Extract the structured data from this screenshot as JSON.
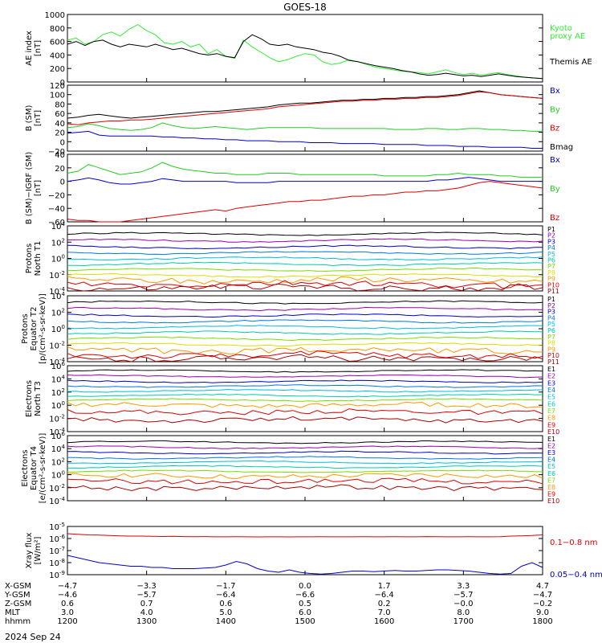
{
  "title": "GOES-18",
  "date_label": "2024 Sep 24",
  "colors": {
    "black": "#000000",
    "green": "#22cc22",
    "blue": "#0000cc",
    "red": "#dd0000",
    "ae_green": "#33ee33"
  },
  "chart_data": [
    {
      "type": "line",
      "id": "ae",
      "ylabel": [
        "AE index",
        "[nT]"
      ],
      "ylim": [
        0,
        1000
      ],
      "yticks": [
        "1000",
        "800",
        "600",
        "400",
        "200",
        "0"
      ],
      "legend": [
        {
          "text": "Kyoto",
          "color": "#33ee33"
        },
        {
          "text": "proxy AE",
          "color": "#33ee33"
        },
        {
          "text": "Themis AE",
          "color": "#000000"
        }
      ],
      "series": [
        {
          "name": "Kyoto proxy AE",
          "color": "#33ee33",
          "values": [
            620,
            650,
            560,
            600,
            700,
            740,
            680,
            780,
            850,
            760,
            700,
            580,
            560,
            600,
            520,
            560,
            420,
            480,
            380,
            350,
            620,
            520,
            440,
            360,
            300,
            330,
            380,
            420,
            400,
            300,
            260,
            280,
            330,
            300,
            260,
            220,
            200,
            180,
            160,
            150,
            140,
            120,
            150,
            180,
            140,
            110,
            130,
            100,
            120,
            140,
            110,
            90,
            70,
            60,
            50
          ]
        },
        {
          "name": "Themis AE",
          "color": "#000000",
          "values": [
            560,
            600,
            540,
            600,
            620,
            560,
            520,
            560,
            540,
            520,
            560,
            520,
            480,
            500,
            460,
            420,
            400,
            420,
            380,
            360,
            600,
            700,
            640,
            560,
            540,
            560,
            520,
            500,
            480,
            440,
            420,
            380,
            320,
            300,
            270,
            240,
            220,
            200,
            170,
            150,
            120,
            100,
            110,
            130,
            110,
            90,
            100,
            80,
            100,
            120,
            100,
            80,
            70,
            60,
            50
          ]
        }
      ]
    },
    {
      "type": "line",
      "id": "bsm",
      "ylabel": [
        "B (SM)",
        "[nT]"
      ],
      "ylim": [
        -20,
        120
      ],
      "yticks": [
        "120",
        "100",
        "80",
        "60",
        "40",
        "20",
        "0",
        "−20"
      ],
      "legend": [
        {
          "text": "Bx",
          "color": "#0000cc"
        },
        {
          "text": "By",
          "color": "#22cc22"
        },
        {
          "text": "Bz",
          "color": "#dd0000"
        },
        {
          "text": "Bmag",
          "color": "#000000"
        }
      ],
      "series": [
        {
          "name": "Bmag",
          "color": "#000000",
          "values": [
            50,
            52,
            56,
            58,
            55,
            52,
            50,
            52,
            54,
            56,
            58,
            60,
            62,
            64,
            64,
            66,
            68,
            70,
            72,
            74,
            78,
            80,
            82,
            82,
            84,
            86,
            88,
            88,
            90,
            90,
            92,
            92,
            94,
            94,
            96,
            96,
            98,
            100,
            104,
            108,
            104,
            100,
            98,
            96,
            94,
            92
          ]
        },
        {
          "name": "By",
          "color": "#22cc22",
          "values": [
            30,
            32,
            38,
            34,
            28,
            26,
            24,
            26,
            30,
            40,
            34,
            30,
            28,
            30,
            32,
            30,
            28,
            26,
            28,
            30,
            30,
            30,
            30,
            30,
            28,
            28,
            28,
            28,
            28,
            28,
            28,
            26,
            26,
            26,
            28,
            28,
            26,
            26,
            28,
            28,
            26,
            26,
            24,
            24,
            22,
            22
          ]
        },
        {
          "name": "Bz",
          "color": "#dd0000",
          "values": [
            38,
            36,
            40,
            42,
            44,
            44,
            46,
            46,
            48,
            50,
            52,
            54,
            56,
            58,
            60,
            62,
            64,
            66,
            68,
            70,
            74,
            76,
            78,
            80,
            82,
            84,
            86,
            86,
            88,
            88,
            90,
            90,
            92,
            92,
            94,
            94,
            96,
            98,
            102,
            106,
            104,
            100,
            98,
            96,
            94,
            92
          ]
        },
        {
          "name": "Bx",
          "color": "#0000cc",
          "values": [
            18,
            20,
            22,
            14,
            12,
            12,
            12,
            12,
            12,
            10,
            10,
            8,
            8,
            6,
            6,
            4,
            4,
            2,
            2,
            2,
            0,
            0,
            0,
            -2,
            -2,
            -2,
            -4,
            -4,
            -4,
            -4,
            -6,
            -6,
            -6,
            -6,
            -8,
            -8,
            -8,
            -10,
            -10,
            -10,
            -12,
            -12,
            -12,
            -12,
            -14,
            -14
          ]
        }
      ]
    },
    {
      "type": "line",
      "id": "bigrf",
      "ylabel": [
        "B (SM)−IGRF (SM)",
        "[nT]"
      ],
      "ylim": [
        -60,
        40
      ],
      "yticks": [
        "40",
        "20",
        "0",
        "−20",
        "−40",
        "−60"
      ],
      "legend": [
        {
          "text": "Bx",
          "color": "#0000cc"
        },
        {
          "text": "By",
          "color": "#22cc22"
        },
        {
          "text": "Bz",
          "color": "#dd0000"
        }
      ],
      "series": [
        {
          "name": "By",
          "color": "#22cc22",
          "values": [
            12,
            15,
            25,
            20,
            15,
            10,
            12,
            14,
            20,
            28,
            22,
            18,
            16,
            14,
            12,
            12,
            10,
            10,
            10,
            12,
            12,
            12,
            10,
            10,
            10,
            10,
            10,
            10,
            10,
            10,
            8,
            8,
            8,
            8,
            8,
            10,
            10,
            12,
            10,
            10,
            10,
            8,
            8,
            6,
            6,
            6
          ]
        },
        {
          "name": "Bx",
          "color": "#0000cc",
          "values": [
            0,
            2,
            5,
            2,
            -2,
            -4,
            -4,
            -2,
            0,
            4,
            2,
            0,
            0,
            0,
            0,
            0,
            -2,
            -2,
            -2,
            -2,
            0,
            0,
            0,
            0,
            0,
            0,
            0,
            0,
            0,
            0,
            0,
            0,
            0,
            0,
            0,
            2,
            2,
            4,
            6,
            4,
            2,
            0,
            0,
            0,
            0,
            0
          ]
        },
        {
          "name": "Bz",
          "color": "#dd0000",
          "values": [
            -56,
            -58,
            -58,
            -60,
            -60,
            -60,
            -58,
            -56,
            -54,
            -52,
            -50,
            -48,
            -46,
            -44,
            -42,
            -44,
            -40,
            -38,
            -36,
            -34,
            -32,
            -30,
            -30,
            -28,
            -28,
            -26,
            -24,
            -22,
            -22,
            -20,
            -20,
            -18,
            -16,
            -16,
            -14,
            -14,
            -12,
            -10,
            -6,
            -2,
            0,
            -2,
            -4,
            -6,
            -8,
            -10
          ]
        }
      ]
    },
    {
      "type": "line",
      "id": "pn",
      "log": true,
      "ylabel": [
        "Protons",
        "North T1"
      ],
      "ylim": [
        -4,
        4
      ],
      "yticks": [
        "10^4",
        "10^2",
        "10^0",
        "10^-2",
        "10^-4"
      ],
      "channels": [
        {
          "name": "P1",
          "color": "#000000",
          "level": 3.0
        },
        {
          "name": "P2",
          "color": "#9900aa",
          "level": 2.2
        },
        {
          "name": "P3",
          "color": "#0000cc",
          "level": 1.4
        },
        {
          "name": "P4",
          "color": "#0077ee",
          "level": 0.7
        },
        {
          "name": "P5",
          "color": "#00bbdd",
          "level": 0.0
        },
        {
          "name": "P6",
          "color": "#00ccaa",
          "level": -0.7
        },
        {
          "name": "P7",
          "color": "#77dd00",
          "level": -1.4
        },
        {
          "name": "P8",
          "color": "#dddd00",
          "level": -2.1
        },
        {
          "name": "P9",
          "color": "#ff9900",
          "level": -2.7
        },
        {
          "name": "P10",
          "color": "#dd0000",
          "level": -3.2
        },
        {
          "name": "P11",
          "color": "#aa0000",
          "level": -3.6
        }
      ]
    },
    {
      "type": "line",
      "id": "pe",
      "log": true,
      "ylabel": [
        "Protons",
        "Equator T2",
        "[p/(cm²-s-sr-keV)]"
      ],
      "ylim": [
        -4,
        4
      ],
      "yticks": [
        "10^4",
        "10^2",
        "10^0",
        "10^-2",
        "10^-4"
      ],
      "channels": [
        {
          "name": "P1",
          "color": "#000000",
          "level": 3.2
        },
        {
          "name": "P2",
          "color": "#9900aa",
          "level": 2.4
        },
        {
          "name": "P3",
          "color": "#0000cc",
          "level": 1.6
        },
        {
          "name": "P4",
          "color": "#0077ee",
          "level": 0.9
        },
        {
          "name": "P5",
          "color": "#00bbdd",
          "level": 0.2
        },
        {
          "name": "P6",
          "color": "#00ccaa",
          "level": -0.5
        },
        {
          "name": "P7",
          "color": "#77dd00",
          "level": -1.2
        },
        {
          "name": "P8",
          "color": "#dddd00",
          "level": -1.9
        },
        {
          "name": "P9",
          "color": "#ff9900",
          "level": -2.6
        },
        {
          "name": "P10",
          "color": "#dd0000",
          "level": -3.2
        },
        {
          "name": "P11",
          "color": "#aa0000",
          "level": -3.6
        }
      ]
    },
    {
      "type": "line",
      "id": "en",
      "log": true,
      "ylabel": [
        "Electrons",
        "North T3"
      ],
      "ylim": [
        -4,
        6
      ],
      "yticks": [
        "10^6",
        "10^4",
        "10^2",
        "10^0",
        "10^-2",
        "10^-4"
      ],
      "channels": [
        {
          "name": "E1",
          "color": "#000000",
          "level": 5.2
        },
        {
          "name": "E2",
          "color": "#9900aa",
          "level": 4.4
        },
        {
          "name": "E3",
          "color": "#0000cc",
          "level": 3.6
        },
        {
          "name": "E4",
          "color": "#0077ee",
          "level": 2.9
        },
        {
          "name": "E5",
          "color": "#00bbdd",
          "level": 2.2
        },
        {
          "name": "E6",
          "color": "#00ccaa",
          "level": 1.5
        },
        {
          "name": "E7",
          "color": "#77dd00",
          "level": 0.8
        },
        {
          "name": "E8",
          "color": "#ff9900",
          "level": 0.0
        },
        {
          "name": "E9",
          "color": "#dd0000",
          "level": -1.0
        },
        {
          "name": "E10",
          "color": "#aa0000",
          "level": -2.2
        }
      ]
    },
    {
      "type": "line",
      "id": "ee",
      "log": true,
      "ylabel": [
        "Electrons",
        "Equator T4",
        "[e/(cm²-s-sr-keV)]"
      ],
      "ylim": [
        -4,
        6
      ],
      "yticks": [
        "10^6",
        "10^4",
        "10^2",
        "10^0",
        "10^-2",
        "10^-4"
      ],
      "channels": [
        {
          "name": "E1",
          "color": "#000000",
          "level": 5.0
        },
        {
          "name": "E2",
          "color": "#9900aa",
          "level": 4.2
        },
        {
          "name": "E3",
          "color": "#0000cc",
          "level": 3.4
        },
        {
          "name": "E4",
          "color": "#0077ee",
          "level": 2.6
        },
        {
          "name": "E5",
          "color": "#00bbdd",
          "level": 1.9
        },
        {
          "name": "E6",
          "color": "#00ccaa",
          "level": 1.2
        },
        {
          "name": "E7",
          "color": "#77dd00",
          "level": 0.5
        },
        {
          "name": "E8",
          "color": "#ff9900",
          "level": -0.2
        },
        {
          "name": "E9",
          "color": "#dd0000",
          "level": -1.0
        },
        {
          "name": "E10",
          "color": "#aa0000",
          "level": -2.0
        }
      ]
    },
    {
      "type": "line",
      "id": "xray",
      "log": true,
      "ylabel": [
        "Xray flux",
        "[W/m²]"
      ],
      "ylim": [
        -9,
        -5
      ],
      "yticks": [
        "10^-5",
        "10^-6",
        "10^-7",
        "10^-8",
        "10^-9"
      ],
      "legend": [
        {
          "text": "0.1−0.8 nm",
          "color": "#dd0000"
        },
        {
          "text": "0.05−0.4 nm",
          "color": "#0000cc"
        }
      ],
      "series": [
        {
          "name": "0.1−0.8 nm",
          "color": "#dd0000",
          "values": [
            -5.6,
            -5.65,
            -5.7,
            -5.72,
            -5.75,
            -5.78,
            -5.8,
            -5.8,
            -5.82,
            -5.83,
            -5.82,
            -5.84,
            -5.85,
            -5.84,
            -5.86,
            -5.86,
            -5.85,
            -5.86,
            -5.87,
            -5.86,
            -5.86,
            -5.87,
            -5.86,
            -5.86,
            -5.85,
            -5.86,
            -5.86,
            -5.86,
            -5.85,
            -5.86,
            -5.86,
            -5.85,
            -5.86,
            -5.86,
            -5.84,
            -5.85,
            -5.86,
            -5.86,
            -5.85,
            -5.86,
            -5.86,
            -5.85,
            -5.8,
            -5.78,
            -5.75,
            -5.7
          ]
        },
        {
          "name": "0.05−0.4 nm",
          "color": "#0000cc",
          "values": [
            -7.4,
            -7.6,
            -7.8,
            -8.0,
            -8.1,
            -8.2,
            -8.3,
            -8.3,
            -8.4,
            -8.4,
            -8.5,
            -8.5,
            -8.5,
            -8.45,
            -8.4,
            -8.2,
            -7.9,
            -8.1,
            -8.5,
            -8.7,
            -8.8,
            -8.6,
            -8.8,
            -8.9,
            -8.95,
            -8.9,
            -8.8,
            -8.7,
            -8.7,
            -8.75,
            -8.7,
            -8.65,
            -8.7,
            -8.7,
            -8.65,
            -8.6,
            -8.6,
            -8.65,
            -8.7,
            -8.8,
            -8.9,
            -8.95,
            -8.9,
            -8.3,
            -8.0,
            -8.4
          ]
        }
      ]
    }
  ],
  "xaxis": {
    "rows": [
      {
        "label": "X-GSM",
        "values": [
          "−4.7",
          "−3.3",
          "−1.7",
          "0.0",
          "1.7",
          "3.3",
          "4.7"
        ]
      },
      {
        "label": "Y-GSM",
        "values": [
          "−4.6",
          "−5.7",
          "−6.4",
          "−6.6",
          "−6.4",
          "−5.7",
          "−4.7"
        ]
      },
      {
        "label": "Z-GSM",
        "values": [
          "0.6",
          "0.7",
          "0.6",
          "0.5",
          "0.2",
          "−0.0",
          "−0.2"
        ]
      },
      {
        "label": "MLT",
        "values": [
          "3.0",
          "4.0",
          "5.0",
          "6.0",
          "7.0",
          "8.0",
          "9.0"
        ]
      },
      {
        "label": "hhmm",
        "values": [
          "1200",
          "1300",
          "1400",
          "1500",
          "1600",
          "1700",
          "1800"
        ]
      }
    ]
  }
}
